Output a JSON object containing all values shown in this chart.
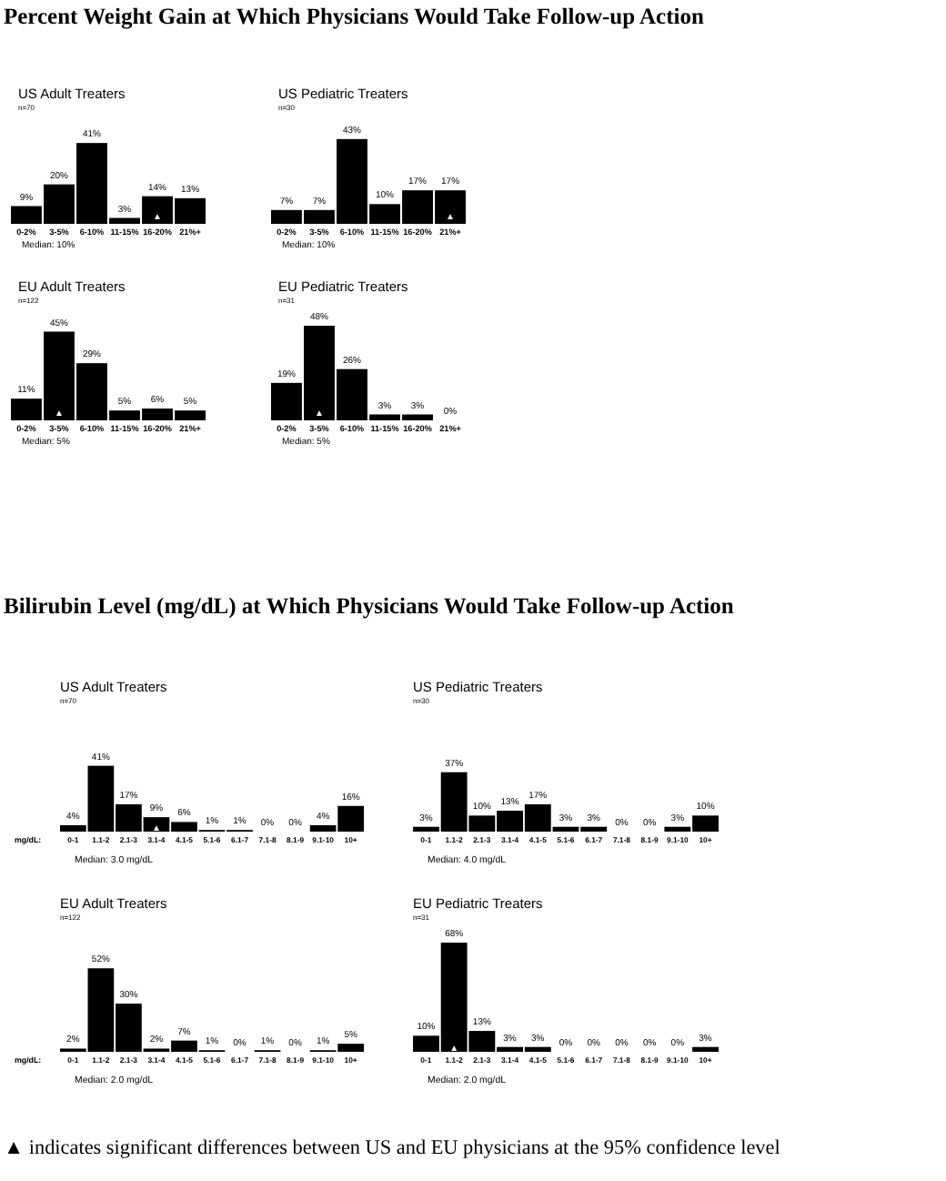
{
  "chart_data": [
    {
      "type": "bar",
      "title": "US Adult Treaters",
      "subtitle": "n=70",
      "categories": [
        "0-2%",
        "3-5%",
        "6-10%",
        "11-15%",
        "16-20%",
        "21%+"
      ],
      "values": [
        9,
        20,
        41,
        3,
        14,
        13
      ],
      "value_labels": [
        "9%",
        "20%",
        "41%",
        "3%",
        "14%",
        "13%"
      ],
      "color": "#000000",
      "annotations": [
        "Percent Weight Gain at Which Physicians Would Take Follow-up Action",
        "Median: 10%",
        {
          "text": "▲",
          "x": "16-20%",
          "y": 4
        }
      ]
    },
    {
      "type": "bar",
      "title": "US Pediatric Treaters",
      "subtitle": "n=30",
      "categories": [
        "0-2%",
        "3-5%",
        "6-10%",
        "11-15%",
        "16-20%",
        "21%+"
      ],
      "values": [
        7,
        7,
        43,
        10,
        17,
        17
      ],
      "value_labels": [
        "7%",
        "7%",
        "43%",
        "10%",
        "17%",
        "17%"
      ],
      "color": "#000000",
      "annotations": [
        "Median: 10%",
        {
          "text": "▲",
          "x": "21%+",
          "y": 4
        }
      ]
    },
    {
      "type": "bar",
      "title": "EU Adult Treaters",
      "subtitle": "n=122",
      "categories": [
        "0-2%",
        "3-5%",
        "6-10%",
        "11-15%",
        "16-20%",
        "21%+"
      ],
      "values": [
        11,
        45,
        29,
        5,
        6,
        5
      ],
      "value_labels": [
        "11%",
        "45%",
        "29%",
        "5%",
        "6%",
        "5%"
      ],
      "color": "#000000",
      "annotations": [
        "Median: 5%",
        {
          "text": "▲",
          "x": "3-5%",
          "y": 4
        }
      ]
    },
    {
      "type": "bar",
      "title": "EU Pediatric Treaters",
      "subtitle": "n=31",
      "categories": [
        "0-2%",
        "3-5%",
        "6-10%",
        "11-15%",
        "16-20%",
        "21%+"
      ],
      "values": [
        19,
        48,
        26,
        3,
        3,
        0
      ],
      "value_labels": [
        "19%",
        "48%",
        "26%",
        "3%",
        "3%",
        "0%"
      ],
      "color": "#000000",
      "annotations": [
        "Median: 5%",
        {
          "text": "▲",
          "x": "3-5%",
          "y": 4
        }
      ]
    },
    {
      "type": "bar",
      "title": "US Adult Treaters",
      "subtitle": "n=70",
      "xlabel": "mg/dL:",
      "categories": [
        "0-1",
        "1.1-2",
        "2.1-3",
        "3.1-4",
        "4.1-5",
        "5.1-6",
        "6.1-7",
        "7.1-8",
        "8.1-9",
        "9.1-10",
        "10+"
      ],
      "values": [
        4,
        41,
        17,
        9,
        6,
        1,
        1,
        0,
        0,
        4,
        16
      ],
      "value_labels": [
        "4%",
        "41%",
        "17%",
        "9%",
        "6%",
        "1%",
        "1%",
        "0%",
        "0%",
        "4%",
        "16%"
      ],
      "color": "#000000",
      "annotations": [
        "Bilirubin Level (mg/dL) at Which Physicians Would Take Follow-up Action",
        "Median: 3.0 mg/dL",
        {
          "text": "▲",
          "x": "3.1-4",
          "y": 3
        }
      ]
    },
    {
      "type": "bar",
      "title": "US Pediatric Treaters",
      "subtitle": "n=30",
      "categories": [
        "0-1",
        "1.1-2",
        "2.1-3",
        "3.1-4",
        "4.1-5",
        "5.1-6",
        "6.1-7",
        "7.1-8",
        "8.1-9",
        "9.1-10",
        "10+"
      ],
      "values": [
        3,
        37,
        10,
        13,
        17,
        3,
        3,
        0,
        0,
        3,
        10
      ],
      "value_labels": [
        "3%",
        "37%",
        "10%",
        "13%",
        "17%",
        "3%",
        "3%",
        "0%",
        "0%",
        "3%",
        "10%"
      ],
      "color": "#000000",
      "annotations": [
        "Median: 4.0 mg/dL"
      ]
    },
    {
      "type": "bar",
      "title": "EU Adult Treaters",
      "subtitle": "n=122",
      "xlabel": "mg/dL:",
      "categories": [
        "0-1",
        "1.1-2",
        "2.1-3",
        "3.1-4",
        "4.1-5",
        "5.1-6",
        "6.1-7",
        "7.1-8",
        "8.1-9",
        "9.1-10",
        "10+"
      ],
      "values": [
        2,
        52,
        30,
        2,
        7,
        1,
        0,
        1,
        0,
        1,
        5
      ],
      "value_labels": [
        "2%",
        "52%",
        "30%",
        "2%",
        "7%",
        "1%",
        "0%",
        "1%",
        "0%",
        "1%",
        "5%"
      ],
      "color": "#000000",
      "annotations": [
        "Median: 2.0 mg/dL"
      ]
    },
    {
      "type": "bar",
      "title": "EU Pediatric Treaters",
      "subtitle": "n=31",
      "categories": [
        "0-1",
        "1.1-2",
        "2.1-3",
        "3.1-4",
        "4.1-5",
        "5.1-6",
        "6.1-7",
        "7.1-8",
        "8.1-9",
        "9.1-10",
        "10+"
      ],
      "values": [
        10,
        68,
        13,
        3,
        3,
        0,
        0,
        0,
        0,
        0,
        3
      ],
      "value_labels": [
        "10%",
        "68%",
        "13%",
        "3%",
        "3%",
        "0%",
        "0%",
        "0%",
        "0%",
        "0%",
        "3%"
      ],
      "color": "#000000",
      "annotations": [
        "Median: 2.0 mg/dL",
        {
          "text": "▲",
          "x": "1.1-2",
          "y": 3
        },
        "▲ indicates significant differences between US and EU physicians at the 95% confidence level"
      ]
    }
  ]
}
